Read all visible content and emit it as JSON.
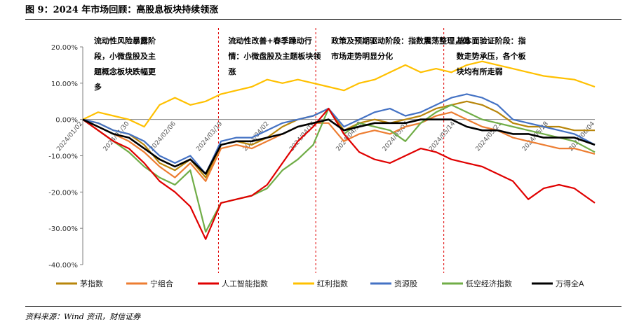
{
  "title": "图 9：2024 年市场回顾：高股息板块持续领涨",
  "source": "资料来源：Wind 资讯，财信证券",
  "chart_data": {
    "type": "line",
    "title": "",
    "xlabel": "",
    "ylabel": "",
    "ylim": [
      -0.4,
      0.2
    ],
    "yticks": [
      "20.00%",
      "10.00%",
      "0.00%",
      "-10.00%",
      "-20.00%",
      "-30.00%",
      "-40.00%"
    ],
    "grid": false,
    "legend_position": "bottom",
    "x_tick_labels": [
      "2024/01/02",
      "2024/01/30",
      "2024/02/06",
      "2024/03/19",
      "2024/04/02",
      "2024/04/16",
      "2024/04/30",
      "2024/05/07",
      "2024/05/14",
      "2024/05/21",
      "2024/05/28",
      "2024/06/04"
    ],
    "phase_dividers": [
      0.265,
      0.455,
      0.705
    ],
    "phases": [
      {
        "lines": [
          "流动性风险暴露阶",
          "段，小微盘股及主",
          "题概念板块跌幅更",
          "多"
        ]
      },
      {
        "lines": [
          "流动性改善+春季躁动行",
          "情：小微盘股及主题板块领",
          "涨"
        ]
      },
      {
        "lines": [
          "政策及预期驱动阶段：指数震荡整理，但",
          "市场走势明显分化"
        ]
      },
      {
        "lines": [
          "基本面验证阶段：指",
          "数走势承压，各个板",
          "块均有所走弱"
        ]
      }
    ],
    "x": [
      0,
      0.03,
      0.06,
      0.09,
      0.12,
      0.15,
      0.18,
      0.21,
      0.24,
      0.27,
      0.3,
      0.33,
      0.36,
      0.39,
      0.42,
      0.45,
      0.48,
      0.51,
      0.54,
      0.57,
      0.6,
      0.63,
      0.66,
      0.69,
      0.72,
      0.75,
      0.78,
      0.81,
      0.84,
      0.87,
      0.9,
      0.93,
      0.96,
      1.0
    ],
    "series": [
      {
        "name": "茅指数",
        "color": "#B8860B",
        "values": [
          0.0,
          -0.01,
          -0.03,
          -0.04,
          -0.07,
          -0.12,
          -0.14,
          -0.11,
          -0.16,
          -0.07,
          -0.06,
          -0.07,
          -0.05,
          -0.02,
          0.0,
          0.01,
          0.03,
          -0.03,
          -0.01,
          0.0,
          -0.01,
          0.0,
          0.01,
          0.03,
          0.04,
          0.05,
          0.04,
          0.02,
          -0.01,
          -0.02,
          -0.02,
          -0.02,
          -0.03,
          -0.03
        ]
      },
      {
        "name": "宁组合",
        "color": "#ED7D31",
        "values": [
          0.0,
          -0.02,
          -0.04,
          -0.06,
          -0.09,
          -0.13,
          -0.16,
          -0.12,
          -0.17,
          -0.08,
          -0.07,
          -0.08,
          -0.06,
          -0.04,
          -0.02,
          -0.01,
          -0.01,
          -0.06,
          -0.04,
          -0.03,
          -0.04,
          -0.02,
          -0.01,
          0.01,
          0.02,
          0.0,
          -0.02,
          -0.03,
          -0.05,
          -0.06,
          -0.07,
          -0.08,
          -0.08,
          -0.095
        ]
      },
      {
        "name": "人工智能指数",
        "color": "#E00000",
        "values": [
          0.0,
          -0.03,
          -0.06,
          -0.08,
          -0.12,
          -0.17,
          -0.2,
          -0.24,
          -0.33,
          -0.23,
          -0.22,
          -0.21,
          -0.18,
          -0.12,
          -0.06,
          -0.02,
          0.03,
          -0.04,
          -0.09,
          -0.11,
          -0.12,
          -0.1,
          -0.08,
          -0.09,
          -0.11,
          -0.12,
          -0.13,
          -0.15,
          -0.17,
          -0.22,
          -0.19,
          -0.18,
          -0.19,
          -0.23
        ]
      },
      {
        "name": "红利指数",
        "color": "#FFC000",
        "values": [
          0.0,
          0.02,
          0.01,
          0.0,
          -0.02,
          0.04,
          0.06,
          0.04,
          0.05,
          0.07,
          0.08,
          0.09,
          0.11,
          0.1,
          0.11,
          0.1,
          0.09,
          0.08,
          0.1,
          0.11,
          0.13,
          0.15,
          0.13,
          0.14,
          0.13,
          0.15,
          0.16,
          0.15,
          0.14,
          0.13,
          0.12,
          0.115,
          0.11,
          0.09
        ]
      },
      {
        "name": "资源股",
        "color": "#4472C4",
        "values": [
          0.0,
          -0.01,
          -0.03,
          -0.04,
          -0.06,
          -0.1,
          -0.12,
          -0.1,
          -0.15,
          -0.06,
          -0.05,
          -0.05,
          -0.03,
          -0.01,
          0.0,
          0.01,
          0.03,
          -0.02,
          0.0,
          0.02,
          0.03,
          0.01,
          0.02,
          0.04,
          0.06,
          0.07,
          0.06,
          0.04,
          0.0,
          -0.01,
          -0.02,
          -0.03,
          -0.04,
          -0.07
        ]
      },
      {
        "name": "低空经济指数",
        "color": "#70AD47",
        "values": [
          0.0,
          -0.03,
          -0.06,
          -0.09,
          -0.13,
          -0.16,
          -0.18,
          -0.14,
          -0.31,
          -0.23,
          -0.22,
          -0.21,
          -0.19,
          -0.14,
          -0.11,
          -0.07,
          0.03,
          -0.04,
          -0.01,
          -0.02,
          -0.03,
          -0.06,
          -0.01,
          0.02,
          0.04,
          0.02,
          0.0,
          -0.01,
          -0.02,
          -0.03,
          -0.04,
          -0.05,
          -0.06,
          -0.09
        ]
      },
      {
        "name": "万得全A",
        "color": "#000000",
        "values": [
          0.0,
          -0.02,
          -0.04,
          -0.05,
          -0.08,
          -0.11,
          -0.13,
          -0.11,
          -0.15,
          -0.07,
          -0.06,
          -0.06,
          -0.05,
          -0.04,
          -0.02,
          -0.01,
          0.0,
          -0.03,
          -0.02,
          -0.01,
          -0.01,
          -0.01,
          0.0,
          0.0,
          0.0,
          -0.02,
          -0.03,
          -0.03,
          -0.04,
          -0.04,
          -0.05,
          -0.05,
          -0.05,
          -0.07
        ]
      }
    ]
  }
}
